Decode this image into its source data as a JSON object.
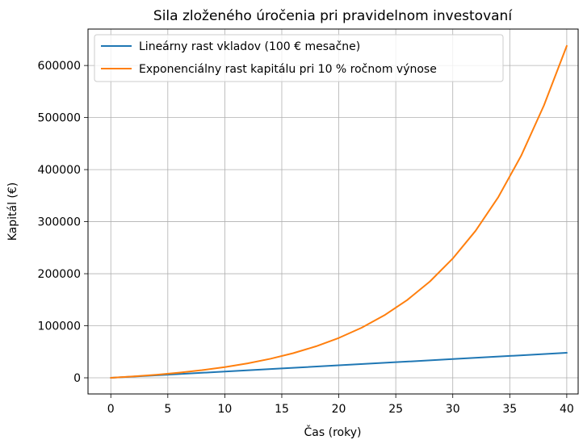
{
  "chart_data": {
    "type": "line",
    "title": "Sila zloženého úročenia pri pravidelnom investovaní",
    "xlabel": "Čas (roky)",
    "ylabel": "Kapitál (€)",
    "xlim": [
      -2,
      41
    ],
    "ylim": [
      -31000,
      670000
    ],
    "xticks": [
      0,
      5,
      10,
      15,
      20,
      25,
      30,
      35,
      40
    ],
    "yticks": [
      0,
      100000,
      200000,
      300000,
      400000,
      500000,
      600000
    ],
    "grid": true,
    "legend_position": "top-left",
    "series": [
      {
        "name": "Lineárny rast vkladov (100 € mesačne)",
        "color": "#1f77b4",
        "x": [
          0,
          5,
          10,
          15,
          20,
          25,
          30,
          35,
          40
        ],
        "y": [
          0,
          6000,
          12000,
          18000,
          24000,
          30000,
          36000,
          42000,
          48000
        ]
      },
      {
        "name": "Exponenciálny rast kapitálu pri 10 % ročnom výnose",
        "color": "#ff7f0e",
        "x": [
          0,
          2,
          4,
          6,
          8,
          10,
          12,
          14,
          16,
          18,
          20,
          22,
          24,
          26,
          28,
          30,
          32,
          34,
          36,
          38,
          40
        ],
        "y": [
          0,
          2650,
          5890,
          9840,
          14670,
          20570,
          27780,
          36590,
          47340,
          60480,
          76570,
          96180,
          120140,
          149410,
          185170,
          229230,
          282380,
          347360,
          426630,
          523460,
          637680
        ]
      }
    ]
  }
}
